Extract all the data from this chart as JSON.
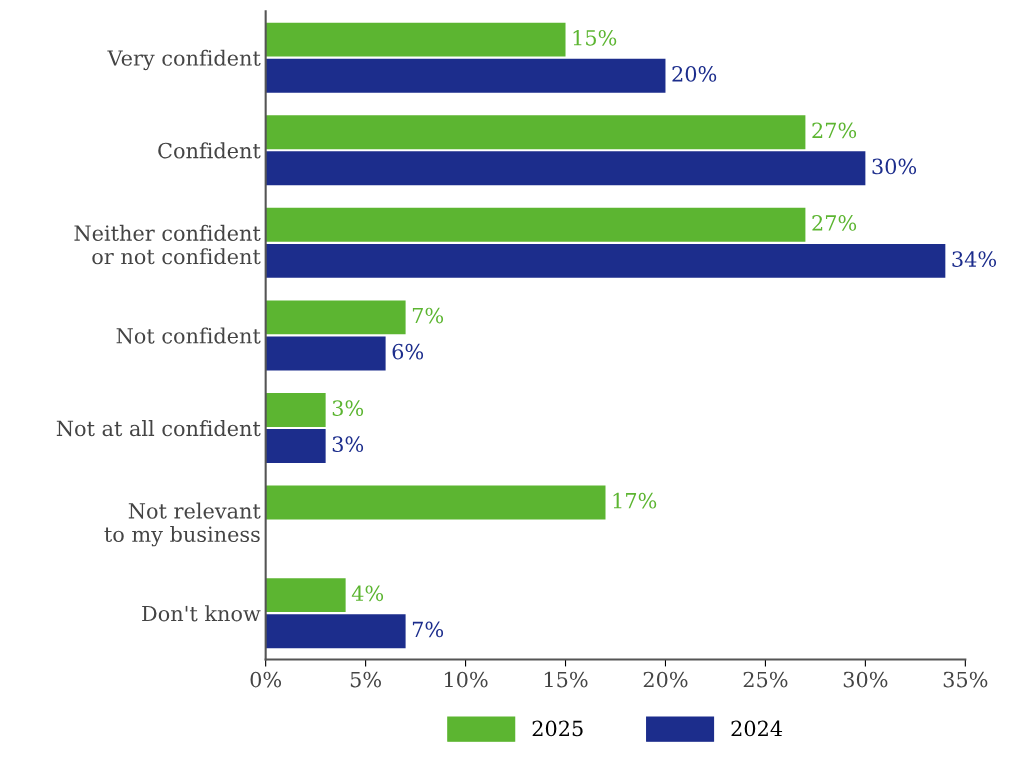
{
  "chart_data": {
    "type": "bar",
    "orientation": "horizontal",
    "categories": [
      "Very confident",
      "Confident",
      "Neither confident\nor not confident",
      "Not confident",
      "Not at all confident",
      "Not relevant\nto my business",
      "Don't know"
    ],
    "series": [
      {
        "name": "2025",
        "color": "#5cb531",
        "values": [
          15,
          27,
          27,
          7,
          3,
          17,
          4
        ],
        "value_labels": [
          "15%",
          "27%",
          "27%",
          "7%",
          "3%",
          "17%",
          "4%"
        ]
      },
      {
        "name": "2024",
        "color": "#1c2d8c",
        "values": [
          20,
          30,
          34,
          6,
          3,
          null,
          7
        ],
        "value_labels": [
          "20%",
          "30%",
          "34%",
          "6%",
          "3%",
          null,
          "7%"
        ]
      }
    ],
    "xlim": [
      0,
      35
    ],
    "xticks": [
      {
        "value": 0,
        "label": "0%"
      },
      {
        "value": 5,
        "label": "5%"
      },
      {
        "value": 10,
        "label": "10%"
      },
      {
        "value": 15,
        "label": "15%"
      },
      {
        "value": 20,
        "label": "20%"
      },
      {
        "value": 25,
        "label": "25%"
      },
      {
        "value": 30,
        "label": "30%"
      },
      {
        "value": 35,
        "label": "35%"
      }
    ],
    "grid": false,
    "legend": "bottom"
  }
}
